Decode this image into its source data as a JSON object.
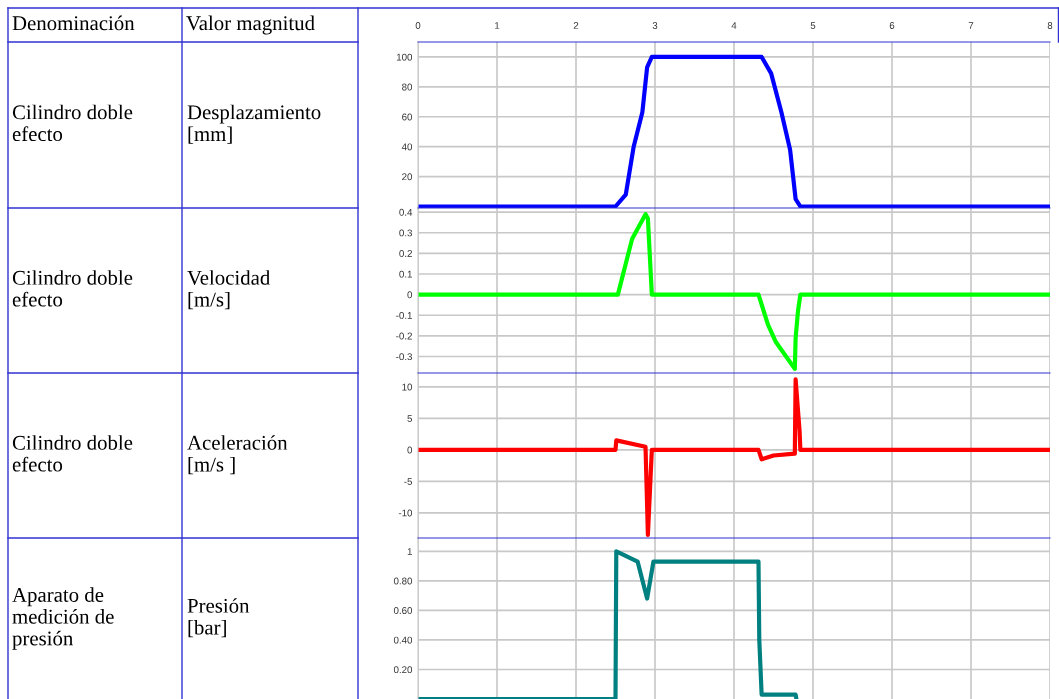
{
  "chart_data": [
    {
      "type": "line",
      "ylabel": "Desplazamiento\n[mm]",
      "annotations": [
        "Denominación",
        "Valor magnitud",
        "Cilindro doble\nefecto"
      ],
      "xlim": [
        0,
        8
      ],
      "xticks": [
        0,
        1,
        2,
        3,
        4,
        5,
        6,
        7,
        8
      ],
      "ylim": [
        -1,
        110
      ],
      "yticks": [
        20,
        40,
        60,
        80,
        100
      ],
      "grid": true,
      "series": [
        {
          "color": "#0000ff",
          "x": [
            0,
            2.5,
            2.63,
            2.73,
            2.84,
            2.9,
            2.96,
            4.35,
            4.47,
            4.6,
            4.71,
            4.78,
            4.84,
            8
          ],
          "values": [
            0,
            0,
            8,
            40,
            63,
            93,
            100,
            100,
            89,
            63,
            38,
            5,
            0,
            0
          ]
        }
      ]
    },
    {
      "type": "line",
      "annotations": [
        "Cilindro doble\nefecto"
      ],
      "ylabel": "Velocidad\n[m/s]",
      "xlim": [
        0,
        8
      ],
      "xticks": [
        0,
        1,
        2,
        3,
        4,
        5,
        6,
        7,
        8
      ],
      "ylim": [
        -0.38,
        0.42
      ],
      "yticks": [
        {
          "value": -0.3,
          "label": "-0.3"
        },
        {
          "value": -0.2,
          "label": "-0.2"
        },
        {
          "value": -0.1,
          "label": "-0.1"
        },
        0,
        0.1,
        0.2,
        0.3,
        0.4
      ],
      "grid": true,
      "tick_labels": "y",
      "series": [
        {
          "color": "#00ff00",
          "x": [
            0,
            2.5,
            2.53,
            2.71,
            2.88,
            2.91,
            2.96,
            4.31,
            4.43,
            4.53,
            4.77,
            4.78,
            4.81,
            4.84,
            8
          ],
          "values": [
            0,
            0,
            0,
            0.27,
            0.39,
            0.37,
            0,
            0,
            -0.145,
            -0.23,
            -0.36,
            -0.21,
            -0.08,
            0,
            0
          ]
        }
      ]
    },
    {
      "type": "line",
      "annotations": [
        "Cilindro doble\nefecto"
      ],
      "ylabel": "Aceleración\n[m/s ]",
      "xlim": [
        0,
        8
      ],
      "xticks": [
        0,
        1,
        2,
        3,
        4,
        5,
        6,
        7,
        8
      ],
      "ylim": [
        -14,
        12.2
      ],
      "yticks": [
        -10,
        -5,
        0,
        5,
        10
      ],
      "grid": true,
      "tick_labels": "y",
      "series": [
        {
          "color": "#ff0000",
          "x": [
            0,
            2.5,
            2.51,
            2.88,
            2.91,
            2.96,
            4.31,
            4.35,
            4.5,
            4.77,
            4.78,
            4.83,
            4.84,
            8
          ],
          "values": [
            0,
            0,
            1.5,
            0.5,
            -13.5,
            0,
            0,
            -1.5,
            -0.9,
            -0.6,
            11.2,
            3,
            0,
            0
          ]
        }
      ]
    },
    {
      "type": "line",
      "annotations": [
        "Aparato de\nmedición de\npresión"
      ],
      "ylabel": "Presión\n[bar]",
      "xlim": [
        0,
        8
      ],
      "xticks": [
        0,
        1,
        2,
        3,
        4,
        5,
        6,
        7,
        8
      ],
      "ylim": [
        0,
        1.09
      ],
      "yticks": [
        {
          "value": 0.2,
          "label": "0.20"
        },
        {
          "value": 0.4,
          "label": "0.40"
        },
        {
          "value": 0.6,
          "label": "0.60"
        },
        {
          "value": 0.8,
          "label": "0.80"
        },
        1
      ],
      "grid": true,
      "tick_labels": "y",
      "series": [
        {
          "color": "#008080",
          "x": [
            0,
            2.5,
            2.51,
            2.78,
            2.9,
            2.98,
            4.31,
            4.32,
            4.35,
            4.78,
            4.79
          ],
          "values": [
            0,
            0,
            1,
            0.93,
            0.68,
            0.93,
            0.93,
            0.4,
            0.03,
            0.03,
            0
          ]
        }
      ]
    }
  ]
}
